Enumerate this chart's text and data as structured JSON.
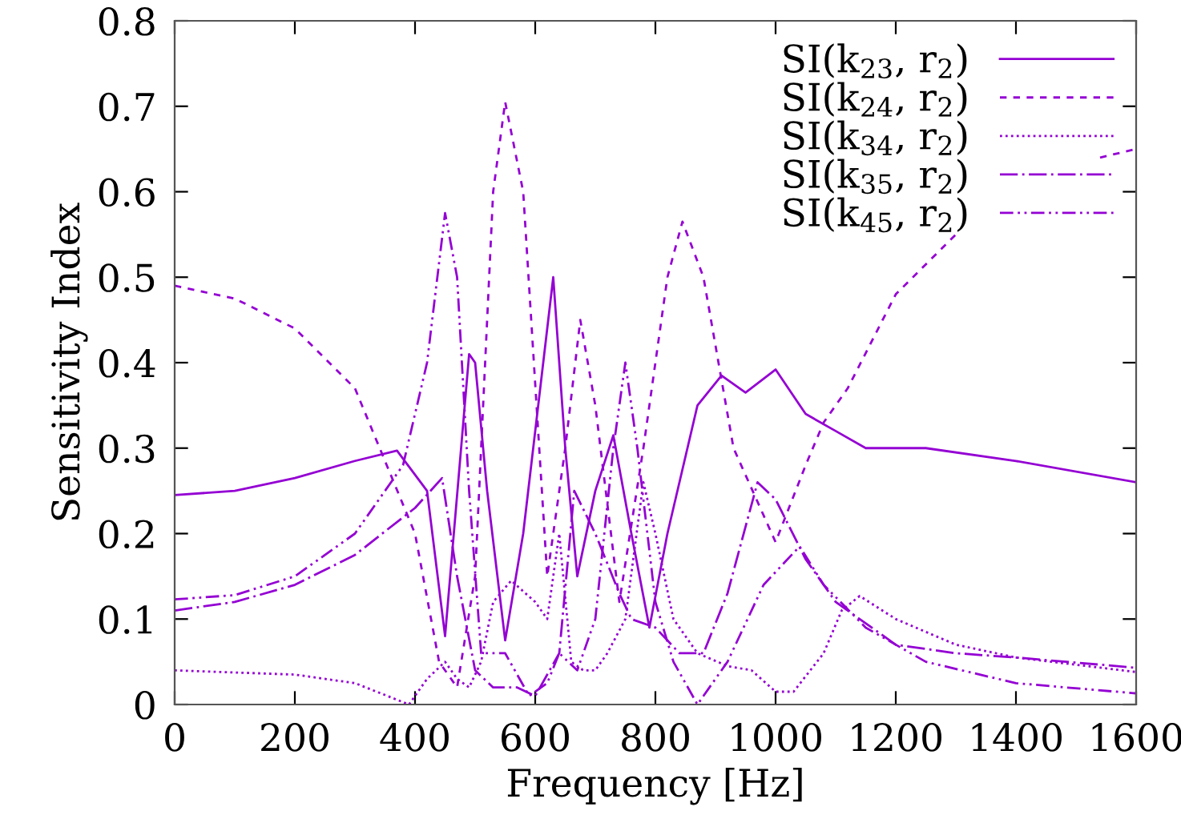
{
  "chart_data": {
    "type": "line",
    "xlabel": "Frequency [Hz]",
    "ylabel": "Sensitivity Index",
    "xlim": [
      0,
      1600
    ],
    "xticks": [
      0,
      200,
      400,
      600,
      800,
      1000,
      1200,
      1400,
      1600
    ],
    "ylim": [
      0,
      0.8
    ],
    "yticks": [
      0,
      0.1,
      0.2,
      0.3,
      0.4,
      0.5,
      0.6,
      0.7,
      0.8
    ],
    "grid": false,
    "legend": "top right",
    "marker": "none",
    "series": [
      {
        "name": "SI(k$_{23}$, r$_{2}$)",
        "color": "#9400d3",
        "line_style": "solid",
        "x": [
          0,
          100,
          200,
          300,
          370,
          420,
          450,
          490,
          500,
          520,
          550,
          580,
          630,
          650,
          670,
          700,
          730,
          760,
          790,
          820,
          870,
          910,
          950,
          1000,
          1050,
          1100,
          1150,
          1250,
          1400,
          1600
        ],
        "values": [
          0.245,
          0.25,
          0.265,
          0.285,
          0.297,
          0.25,
          0.08,
          0.41,
          0.4,
          0.25,
          0.075,
          0.2,
          0.5,
          0.3,
          0.15,
          0.25,
          0.315,
          0.2,
          0.09,
          0.2,
          0.35,
          0.385,
          0.365,
          0.392,
          0.34,
          0.32,
          0.3,
          0.3,
          0.285,
          0.26
        ]
      },
      {
        "name": "SI(k$_{24}$, r$_{2}$)",
        "color": "#9400d3",
        "line_style": "dashed",
        "x": [
          0,
          100,
          200,
          300,
          400,
          440,
          470,
          500,
          530,
          550,
          580,
          620,
          650,
          675,
          700,
          740,
          780,
          820,
          845,
          880,
          930,
          1000,
          1050,
          1080,
          1120,
          1200,
          1300,
          1350,
          1450,
          1500,
          1540,
          1600
        ],
        "values": [
          0.49,
          0.475,
          0.44,
          0.37,
          0.2,
          0.05,
          0.02,
          0.15,
          0.6,
          0.705,
          0.6,
          0.15,
          0.3,
          0.45,
          0.35,
          0.12,
          0.3,
          0.5,
          0.565,
          0.5,
          0.3,
          0.19,
          0.28,
          0.33,
          0.37,
          0.48,
          0.55,
          null,
          null,
          null,
          0.64,
          0.65
        ]
      },
      {
        "name": "SI(k$_{34}$, r$_{2}$)",
        "color": "#9400d3",
        "line_style": "dotted",
        "x": [
          0,
          200,
          300,
          390,
          420,
          450,
          470,
          490,
          510,
          530,
          560,
          600,
          620,
          640,
          660,
          680,
          700,
          720,
          750,
          780,
          800,
          830,
          870,
          920,
          960,
          1000,
          1030,
          1080,
          1110,
          1140,
          1200,
          1300,
          1400,
          1600
        ],
        "values": [
          0.04,
          0.035,
          0.025,
          0.0,
          0.03,
          0.05,
          0.03,
          0.02,
          0.05,
          0.12,
          0.145,
          0.12,
          0.1,
          0.2,
          0.05,
          0.04,
          0.04,
          0.06,
          0.1,
          0.26,
          0.2,
          0.1,
          0.06,
          0.045,
          0.04,
          0.015,
          0.015,
          0.06,
          0.11,
          0.127,
          0.1,
          0.07,
          0.055,
          0.038
        ]
      },
      {
        "name": "SI(k$_{35}$, r$_{2}$)",
        "color": "#9400d3",
        "line_style": "dashdot",
        "x": [
          0,
          100,
          200,
          300,
          400,
          445,
          470,
          500,
          530,
          570,
          600,
          640,
          665,
          700,
          740,
          760,
          800,
          840,
          880,
          920,
          970,
          1000,
          1050,
          1100,
          1200,
          1300,
          1400,
          1600
        ],
        "values": [
          0.11,
          0.12,
          0.14,
          0.175,
          0.23,
          0.265,
          0.15,
          0.04,
          0.02,
          0.02,
          0.01,
          0.06,
          0.25,
          0.2,
          0.13,
          0.1,
          0.09,
          0.06,
          0.06,
          0.13,
          0.26,
          0.24,
          0.17,
          0.12,
          0.07,
          0.06,
          0.055,
          0.043
        ]
      },
      {
        "name": "SI(k$_{45}$, r$_{2}$)",
        "color": "#9400d3",
        "line_style": "dashdotdot",
        "x": [
          0,
          100,
          200,
          300,
          380,
          420,
          450,
          470,
          490,
          510,
          550,
          590,
          620,
          640,
          670,
          700,
          730,
          750,
          770,
          800,
          830,
          870,
          920,
          980,
          1040,
          1080,
          1150,
          1250,
          1400,
          1600
        ],
        "values": [
          0.123,
          0.128,
          0.15,
          0.2,
          0.28,
          0.4,
          0.575,
          0.5,
          0.25,
          0.06,
          0.06,
          0.01,
          0.025,
          0.06,
          0.04,
          0.1,
          0.3,
          0.4,
          0.3,
          0.12,
          0.05,
          0.0,
          0.05,
          0.14,
          0.185,
          0.14,
          0.09,
          0.05,
          0.025,
          0.013
        ]
      }
    ]
  }
}
